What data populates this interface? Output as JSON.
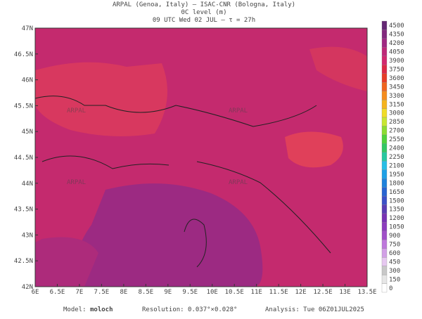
{
  "header": {
    "line1": "ARPAL (Genoa, Italy)  –  ISAC-CNR (Bologna, Italy)",
    "line2": "0C level (m)",
    "line3": "09 UTC Wed 02 JUL  –  τ = 27h"
  },
  "lon_ticks": [
    "6E",
    "6.5E",
    "7E",
    "7.5E",
    "8E",
    "8.5E",
    "9E",
    "9.5E",
    "10E",
    "10.5E",
    "11E",
    "11.5E",
    "12E",
    "12.5E",
    "13E",
    "13.5E"
  ],
  "lat_ticks": [
    "42N",
    "42.5N",
    "43N",
    "43.5N",
    "44N",
    "44.5N",
    "45N",
    "45.5N",
    "46N",
    "46.5N",
    "47N"
  ],
  "colorbar": {
    "labels": [
      "0",
      "150",
      "300",
      "450",
      "600",
      "750",
      "900",
      "1050",
      "1200",
      "1350",
      "1500",
      "1650",
      "1800",
      "1950",
      "2100",
      "2250",
      "2400",
      "2550",
      "2700",
      "2850",
      "3000",
      "3150",
      "3300",
      "3450",
      "3600",
      "3750",
      "3900",
      "4050",
      "4200",
      "4350",
      "4500"
    ],
    "colors": [
      "#ffffff",
      "#e6e6e6",
      "#c8c8c8",
      "#e6c8f0",
      "#d2a0e6",
      "#be78dc",
      "#a050c8",
      "#8c3cbe",
      "#7832b4",
      "#5a3cb4",
      "#3c50c8",
      "#2864d2",
      "#1e82dc",
      "#1ea0e6",
      "#28bee6",
      "#28c8a0",
      "#32c864",
      "#50d23c",
      "#8cdc32",
      "#c8e632",
      "#f0dc28",
      "#f5b41e",
      "#f58c1e",
      "#f0641e",
      "#e63c28",
      "#dc2846",
      "#d2286e",
      "#be2878",
      "#a02882",
      "#82287d",
      "#642873"
    ]
  },
  "footer": {
    "model_label": "Model:",
    "model": "moloch",
    "resolution": "Resolution: 0.037°×0.028°",
    "analysis": "Analysis: Tue 06Z01JUL2025"
  },
  "watermark": "ARPAL"
}
